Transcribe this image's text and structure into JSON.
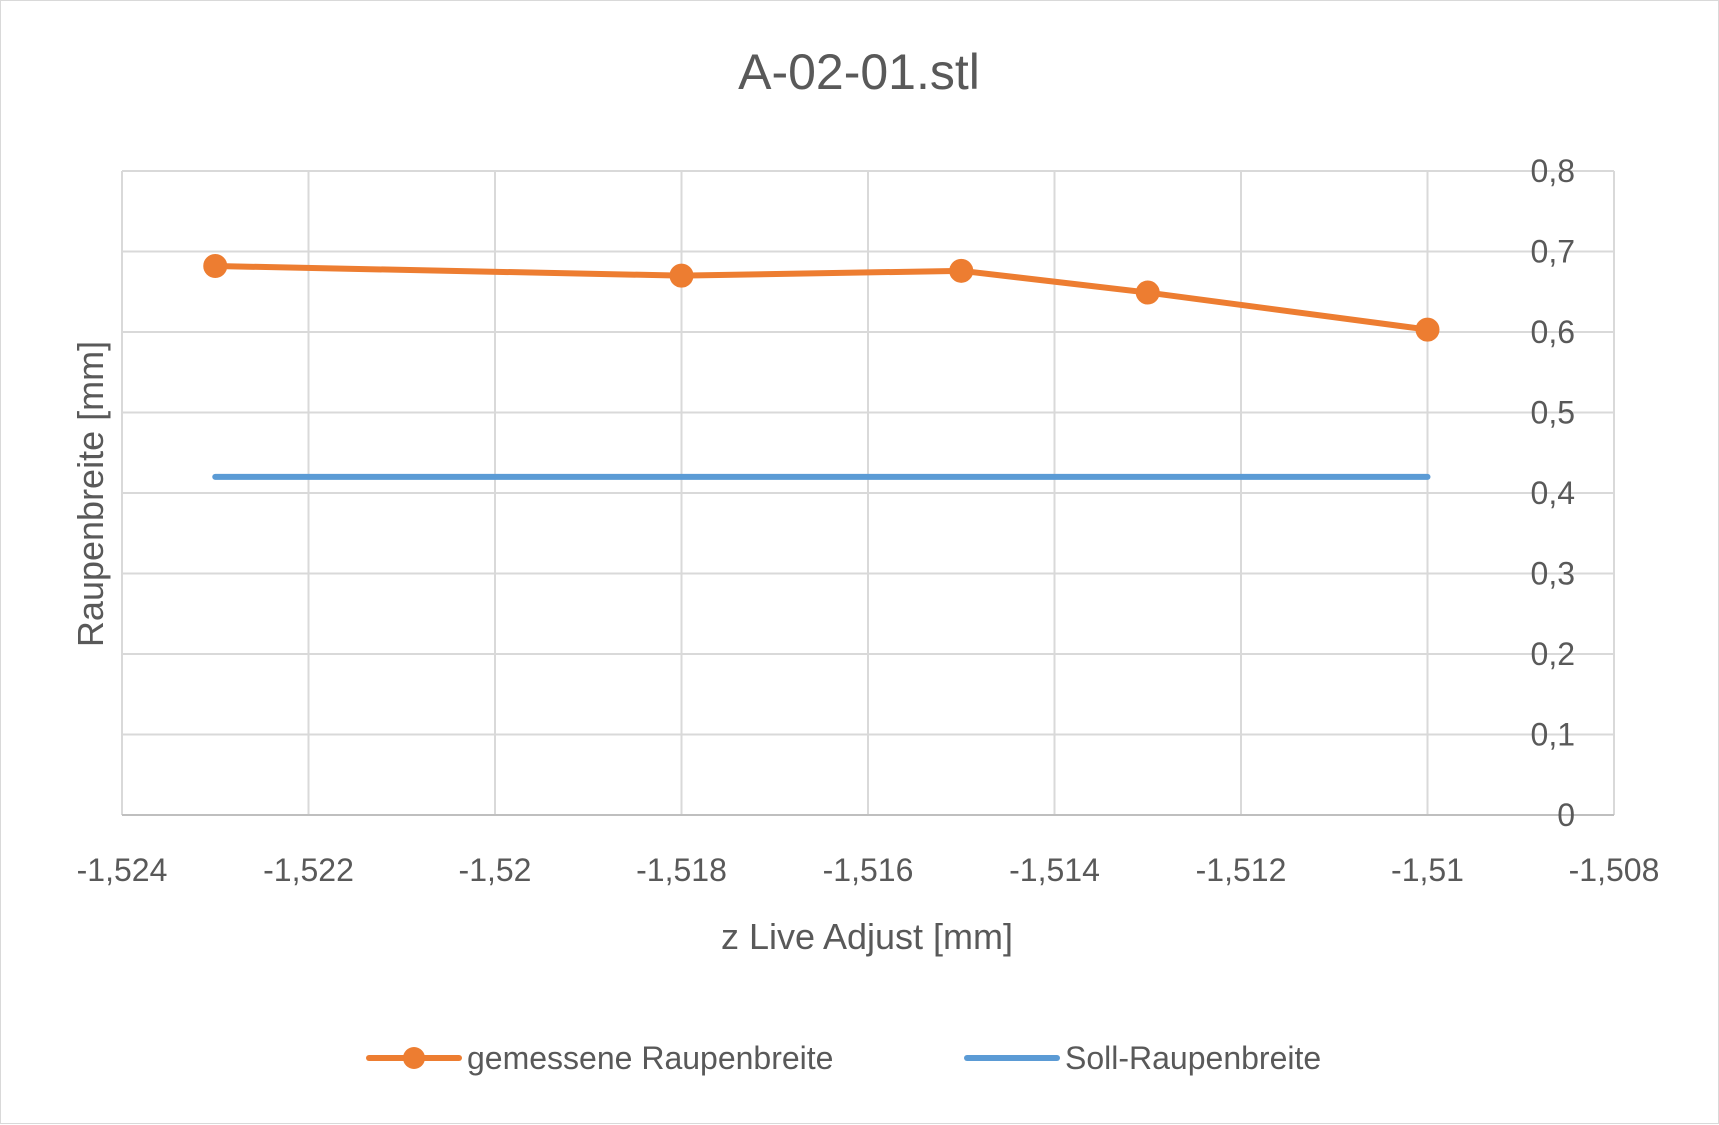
{
  "chart_data": {
    "type": "scatter",
    "title": "A-02-01.stl",
    "xlabel": "z Live Adjust [mm]",
    "ylabel": "Raupenbreite [mm]",
    "xlim": [
      -1.524,
      -1.508
    ],
    "ylim": [
      0,
      0.8
    ],
    "x_ticks": [
      -1.524,
      -1.522,
      -1.52,
      -1.518,
      -1.516,
      -1.514,
      -1.512,
      -1.51,
      -1.508
    ],
    "x_tick_labels": [
      "-1,524",
      "-1,522",
      "-1,52",
      "-1,518",
      "-1,516",
      "-1,514",
      "-1,512",
      "-1,51",
      "-1,508"
    ],
    "y_ticks": [
      0,
      0.1,
      0.2,
      0.3,
      0.4,
      0.5,
      0.6,
      0.7,
      0.8
    ],
    "y_tick_labels": [
      "0",
      "0,1",
      "0,2",
      "0,3",
      "0,4",
      "0,5",
      "0,6",
      "0,7",
      "0,8"
    ],
    "y_axis_side": "right",
    "grid": true,
    "legend_position": "bottom",
    "series": [
      {
        "name": "gemessene Raupenbreite",
        "color": "#ed7d31",
        "markers": true,
        "x": [
          -1.523,
          -1.518,
          -1.515,
          -1.513,
          -1.51
        ],
        "y": [
          0.682,
          0.67,
          0.676,
          0.649,
          0.603
        ]
      },
      {
        "name": "Soll-Raupenbreite",
        "color": "#5b9bd5",
        "markers": false,
        "x": [
          -1.523,
          -1.51
        ],
        "y": [
          0.42,
          0.42
        ]
      }
    ]
  }
}
